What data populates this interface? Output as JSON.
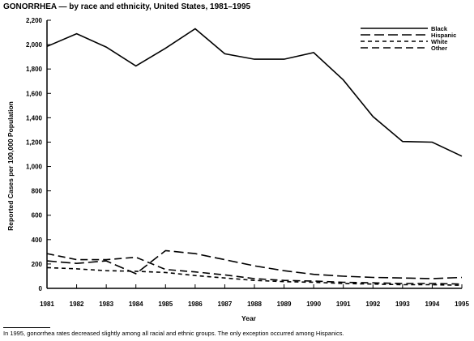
{
  "title": "GONORRHEA — by race and ethnicity, United States, 1981–1995",
  "footnote": "In 1995, gonorrhea rates decreased slightly among all racial and ethnic groups. The only exception occurred among Hispanics.",
  "chart_data": {
    "type": "line",
    "xlabel": "Year",
    "ylabel": "Reported Cases per 100,000 Population",
    "ylim": [
      0,
      2200
    ],
    "yticks": [
      0,
      200,
      400,
      600,
      800,
      1000,
      1200,
      1400,
      1600,
      1800,
      2000,
      2200
    ],
    "ytick_labels": [
      "0",
      "200",
      "400",
      "600",
      "800",
      "1,000",
      "1,200",
      "1,400",
      "1,600",
      "1,800",
      "2,000",
      "2,200"
    ],
    "x": [
      1981,
      1982,
      1983,
      1984,
      1985,
      1986,
      1987,
      1988,
      1989,
      1990,
      1991,
      1992,
      1993,
      1994,
      1995
    ],
    "grid": false,
    "legend_position": "top-right",
    "series": [
      {
        "name": "Black",
        "dash": "solid",
        "values": [
          1985,
          2090,
          1980,
          1825,
          1970,
          2130,
          1925,
          1880,
          1880,
          1935,
          1710,
          1410,
          1205,
          1200,
          1085
        ]
      },
      {
        "name": "Hispanic",
        "dash": "long-dash",
        "values": [
          225,
          205,
          225,
          120,
          310,
          285,
          235,
          185,
          145,
          115,
          100,
          90,
          85,
          80,
          90
        ]
      },
      {
        "name": "White",
        "dash": "short-dash",
        "values": [
          170,
          160,
          145,
          140,
          130,
          105,
          85,
          65,
          55,
          50,
          40,
          35,
          30,
          30,
          25
        ]
      },
      {
        "name": "Other",
        "dash": "medium-dash",
        "values": [
          285,
          235,
          235,
          255,
          155,
          135,
          110,
          80,
          65,
          60,
          50,
          45,
          40,
          40,
          35
        ]
      }
    ]
  }
}
